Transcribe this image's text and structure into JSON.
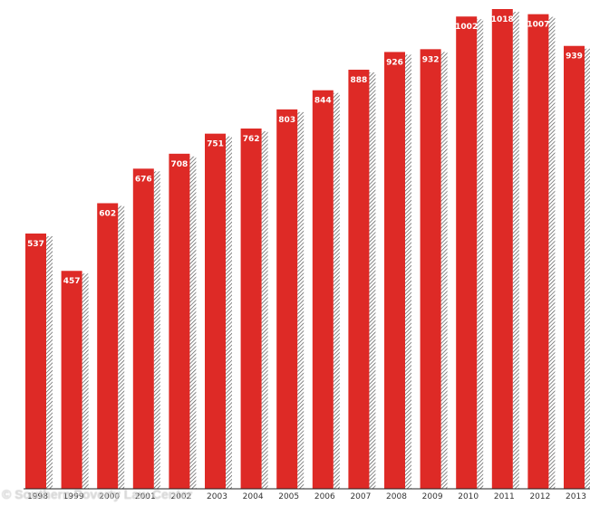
{
  "chart_data": {
    "type": "bar",
    "title": "",
    "xlabel": "",
    "ylabel": "",
    "categories": [
      "1998",
      "1999",
      "2000",
      "2001",
      "2002",
      "2003",
      "2004",
      "2005",
      "2006",
      "2007",
      "2008",
      "2009",
      "2010",
      "2011",
      "2012",
      "2013"
    ],
    "values": [
      537,
      457,
      602,
      676,
      708,
      751,
      762,
      803,
      844,
      888,
      926,
      932,
      1002,
      1018,
      1007,
      939
    ],
    "bar_color": "#de2a26",
    "shadow_color": "#555555",
    "grid": false,
    "legend": "none"
  },
  "credit": "© Southern Poverty Law Center"
}
